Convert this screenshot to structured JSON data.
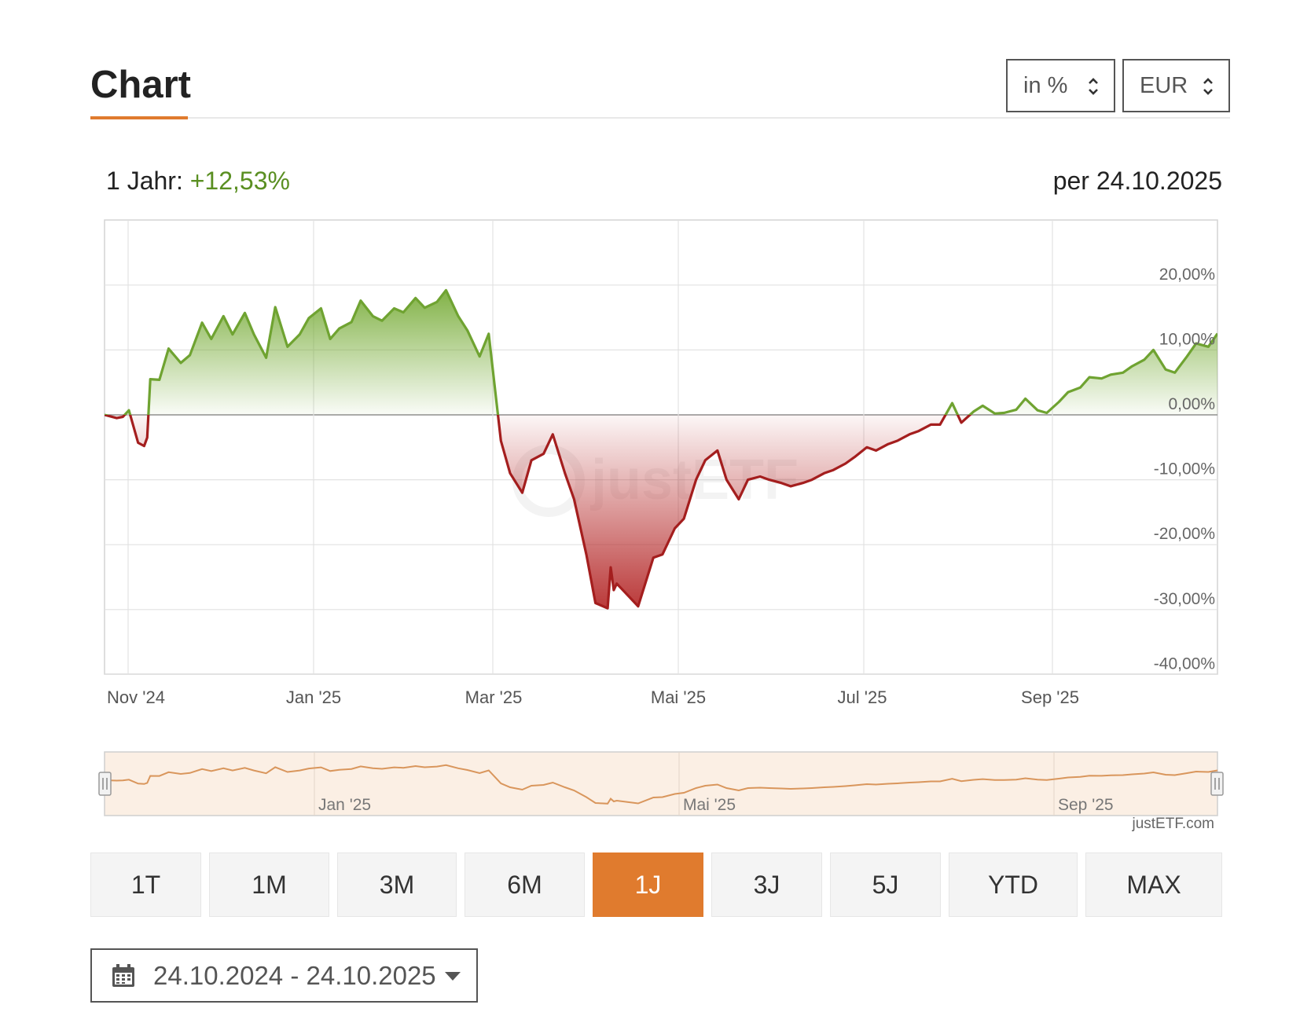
{
  "header": {
    "title": "Chart",
    "unit_select": "in %",
    "currency_select": "EUR"
  },
  "summary": {
    "period_label": "1 Jahr:",
    "performance": "+12,53%",
    "as_of": "per 24.10.2025"
  },
  "colors": {
    "accent": "#e07b2e",
    "positive": "#6fa331",
    "negative": "#a41e1e",
    "navigator_line": "#d9965c",
    "navigator_bg": "#fbefe4"
  },
  "chart_data": {
    "type": "area",
    "title": "",
    "xlabel": "",
    "ylabel": "",
    "x_start": "24.10.2024",
    "x_end": "24.10.2025",
    "x_ticks": [
      "Nov '24",
      "Jan '25",
      "Mar '25",
      "Mai '25",
      "Jul '25",
      "Sep '25"
    ],
    "y_ticks": [
      "20,00%",
      "10,00%",
      "0,00%",
      "-10,00%",
      "-20,00%",
      "-30,00%",
      "-40,00%"
    ],
    "ylim": [
      -40,
      30
    ],
    "baseline": 0,
    "grid": true,
    "series": [
      {
        "x": [
          "24.10.2024",
          "28.10.2024",
          "30.10.2024",
          "01.11.2024",
          "04.11.2024",
          "06.11.2024",
          "07.11.2024",
          "08.11.2024",
          "11.11.2024",
          "14.11.2024",
          "18.11.2024",
          "21.11.2024",
          "25.11.2024",
          "28.11.2024",
          "02.12.2024",
          "05.12.2024",
          "09.12.2024",
          "12.12.2024",
          "16.12.2024",
          "19.12.2024",
          "23.12.2024",
          "27.12.2024",
          "30.12.2024",
          "03.01.2025",
          "06.01.2025",
          "09.01.2025",
          "13.01.2025",
          "16.01.2025",
          "20.01.2025",
          "23.01.2025",
          "27.01.2025",
          "30.01.2025",
          "03.02.2025",
          "06.02.2025",
          "10.02.2025",
          "13.02.2025",
          "17.02.2025",
          "20.02.2025",
          "24.02.2025",
          "27.02.2025",
          "03.03.2025",
          "06.03.2025",
          "10.03.2025",
          "13.03.2025",
          "17.03.2025",
          "20.03.2025",
          "24.03.2025",
          "27.03.2025",
          "31.03.2025",
          "03.04.2025",
          "07.04.2025",
          "08.04.2025",
          "09.04.2025",
          "10.04.2025",
          "14.04.2025",
          "17.04.2025",
          "22.04.2025",
          "25.04.2025",
          "29.04.2025",
          "02.05.2025",
          "06.05.2025",
          "09.05.2025",
          "13.05.2025",
          "16.05.2025",
          "20.05.2025",
          "23.05.2025",
          "27.05.2025",
          "30.05.2025",
          "03.06.2025",
          "06.06.2025",
          "10.06.2025",
          "13.06.2025",
          "17.06.2025",
          "20.06.2025",
          "24.06.2025",
          "27.06.2025",
          "01.07.2025",
          "04.07.2025",
          "08.07.2025",
          "11.07.2025",
          "15.07.2025",
          "18.07.2025",
          "22.07.2025",
          "25.07.2025",
          "29.07.2025",
          "01.08.2025",
          "05.08.2025",
          "08.08.2025",
          "12.08.2025",
          "15.08.2025",
          "19.08.2025",
          "22.08.2025",
          "26.08.2025",
          "29.08.2025",
          "02.09.2025",
          "05.09.2025",
          "09.09.2025",
          "12.09.2025",
          "16.09.2025",
          "19.09.2025",
          "23.09.2025",
          "26.09.2025",
          "30.09.2025",
          "03.10.2025",
          "07.10.2025",
          "10.10.2025",
          "14.10.2025",
          "17.10.2025",
          "21.10.2025",
          "24.10.2025"
        ],
        "y": [
          0,
          -0.5,
          -0.3,
          0.7,
          -4.3,
          -4.8,
          -3.5,
          5.5,
          5.4,
          10.2,
          8,
          9.2,
          14.2,
          11.7,
          15.2,
          12.4,
          15.7,
          12.4,
          8.8,
          16.6,
          10.5,
          12.4,
          14.9,
          16.4,
          11.7,
          13.3,
          14.3,
          17.6,
          15.2,
          14.5,
          16.4,
          15.8,
          18,
          16.5,
          17.4,
          19.2,
          15.2,
          13,
          9,
          12.5,
          -4,
          -9,
          -12,
          -7,
          -6,
          -3,
          -9,
          -13,
          -21.5,
          -29,
          -29.8,
          -23.5,
          -27,
          -26,
          -28,
          -29.5,
          -22,
          -21.5,
          -17.5,
          -16,
          -10,
          -7,
          -5.5,
          -10,
          -13,
          -10,
          -9.5,
          -10,
          -10.5,
          -11,
          -10.5,
          -10,
          -9,
          -8.5,
          -7.5,
          -6.5,
          -5,
          -5.5,
          -4.5,
          -4,
          -3,
          -2.5,
          -1.5,
          -1.5,
          1.8,
          -1.2,
          0.5,
          1.4,
          0.2,
          0.3,
          0.8,
          2.5,
          0.7,
          0.3,
          2,
          3.5,
          4.2,
          5.8,
          5.6,
          6.2,
          6.5,
          7.5,
          8.5,
          10,
          7,
          6.5,
          9,
          11,
          10.5,
          12.53
        ]
      }
    ]
  },
  "navigator": {
    "labels": [
      "Jan '25",
      "Mai '25",
      "Sep '25"
    ]
  },
  "credit": "justETF.com",
  "ranges": [
    "1T",
    "1M",
    "3M",
    "6M",
    "1J",
    "3J",
    "5J",
    "YTD",
    "MAX"
  ],
  "active_range": "1J",
  "date_range": "24.10.2024 - 24.10.2025"
}
